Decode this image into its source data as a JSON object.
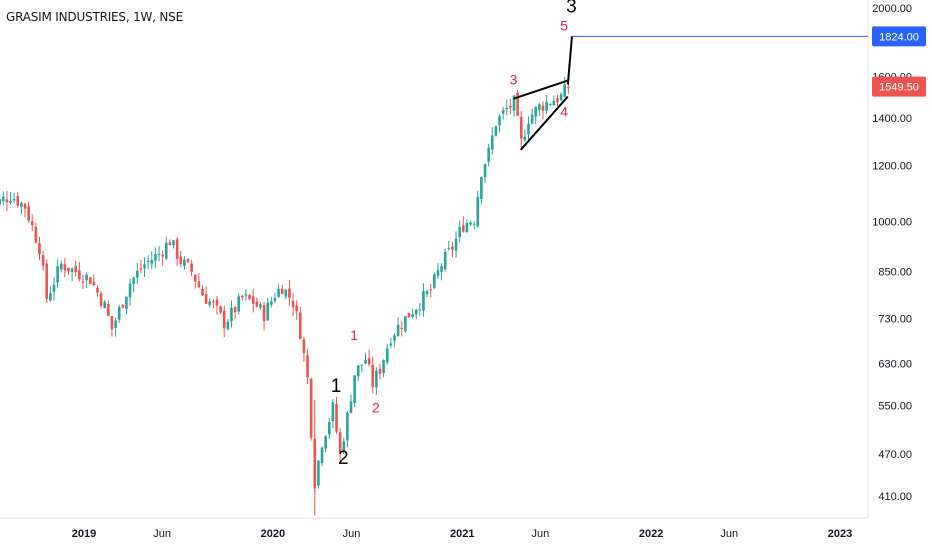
{
  "symbol_title": "GRASIM INDUSTRIES, 1W, NSE",
  "chart_data": {
    "type": "candlestick",
    "title": "GRASIM INDUSTRIES, 1W, NSE",
    "y_scale": "log",
    "y_ticks": [
      "2000.00",
      "1600.00",
      "1400.00",
      "1200.00",
      "1000.00",
      "850.00",
      "730.00",
      "630.00",
      "550.00",
      "470.00",
      "410.00"
    ],
    "x_ticks": [
      "2019",
      "Jun",
      "2020",
      "Jun",
      "2021",
      "Jun",
      "2022",
      "Jun",
      "2023"
    ],
    "price_markers": [
      {
        "label": "1824.00",
        "value": 1824,
        "color": "#2962ff"
      },
      {
        "label": "1549.50",
        "value": 1549.5,
        "color": "#ef5350"
      }
    ],
    "colors": {
      "up": "#26a69a",
      "down": "#ef5350",
      "wave_major": "#000000",
      "wave_minor": "#e91e63"
    },
    "wave_labels": [
      {
        "text": "1",
        "kind": "major",
        "date": "2020-05-02",
        "price": 575
      },
      {
        "text": "2",
        "kind": "major",
        "date": "2020-05-16",
        "price": 455
      },
      {
        "text": "3",
        "kind": "major",
        "date": "2021-07-31",
        "price": 1970
      },
      {
        "text": "1",
        "kind": "minor",
        "date": "2020-06-06",
        "price": 680
      },
      {
        "text": "2",
        "kind": "minor",
        "date": "2020-07-18",
        "price": 538
      },
      {
        "text": "3",
        "kind": "minor",
        "date": "2021-04-10",
        "price": 1560
      },
      {
        "text": "4",
        "kind": "minor",
        "date": "2021-07-17",
        "price": 1405
      },
      {
        "text": "5",
        "kind": "minor",
        "date": "2021-07-17",
        "price": 1860
      }
    ],
    "trendlines": [
      {
        "from": {
          "date": "2021-04-10",
          "price": 1490
        },
        "to": {
          "date": "2021-07-24",
          "price": 1580
        }
      },
      {
        "from": {
          "date": "2021-04-24",
          "price": 1262
        },
        "to": {
          "date": "2021-07-24",
          "price": 1500
        }
      },
      {
        "from": {
          "date": "2021-07-24",
          "price": 1560
        },
        "to": {
          "date": "2021-08-01",
          "price": 1824
        }
      }
    ],
    "series": [
      {
        "type": "weekly_ohlc",
        "note_values": "approximate closes by week",
        "dates_start": "2018-07-01",
        "path_anchors": [
          [
            "2018-07-01",
            1045
          ],
          [
            "2018-08-12",
            1090
          ],
          [
            "2018-09-09",
            1050
          ],
          [
            "2018-10-07",
            920
          ],
          [
            "2018-10-21",
            780
          ],
          [
            "2018-11-18",
            870
          ],
          [
            "2018-12-16",
            850
          ],
          [
            "2019-01-13",
            830
          ],
          [
            "2019-02-10",
            760
          ],
          [
            "2019-02-24",
            705
          ],
          [
            "2019-03-31",
            820
          ],
          [
            "2019-04-28",
            870
          ],
          [
            "2019-05-26",
            900
          ],
          [
            "2019-06-16",
            940
          ],
          [
            "2019-07-07",
            880
          ],
          [
            "2019-07-28",
            850
          ],
          [
            "2019-08-18",
            790
          ],
          [
            "2019-09-08",
            760
          ],
          [
            "2019-09-29",
            720
          ],
          [
            "2019-10-13",
            740
          ],
          [
            "2019-11-03",
            780
          ],
          [
            "2019-11-24",
            770
          ],
          [
            "2019-12-15",
            740
          ],
          [
            "2020-01-05",
            790
          ],
          [
            "2020-01-19",
            810
          ],
          [
            "2020-02-09",
            770
          ],
          [
            "2020-02-23",
            700
          ],
          [
            "2020-03-08",
            600
          ],
          [
            "2020-03-22",
            430
          ],
          [
            "2020-04-05",
            490
          ],
          [
            "2020-04-26",
            545
          ],
          [
            "2020-05-10",
            470
          ],
          [
            "2020-05-24",
            530
          ],
          [
            "2020-06-07",
            610
          ],
          [
            "2020-06-28",
            640
          ],
          [
            "2020-07-12",
            590
          ],
          [
            "2020-07-26",
            620
          ],
          [
            "2020-08-16",
            690
          ],
          [
            "2020-09-06",
            720
          ],
          [
            "2020-10-04",
            760
          ],
          [
            "2020-11-01",
            800
          ],
          [
            "2020-11-22",
            870
          ],
          [
            "2020-12-13",
            920
          ],
          [
            "2021-01-03",
            990
          ],
          [
            "2021-01-24",
            1010
          ],
          [
            "2021-02-07",
            1180
          ],
          [
            "2021-02-21",
            1250
          ],
          [
            "2021-03-07",
            1380
          ],
          [
            "2021-03-28",
            1440
          ],
          [
            "2021-04-11",
            1470
          ],
          [
            "2021-04-25",
            1290
          ],
          [
            "2021-05-09",
            1400
          ],
          [
            "2021-05-30",
            1450
          ],
          [
            "2021-06-20",
            1480
          ],
          [
            "2021-07-11",
            1500
          ],
          [
            "2021-07-25",
            1549.5
          ]
        ]
      }
    ]
  }
}
